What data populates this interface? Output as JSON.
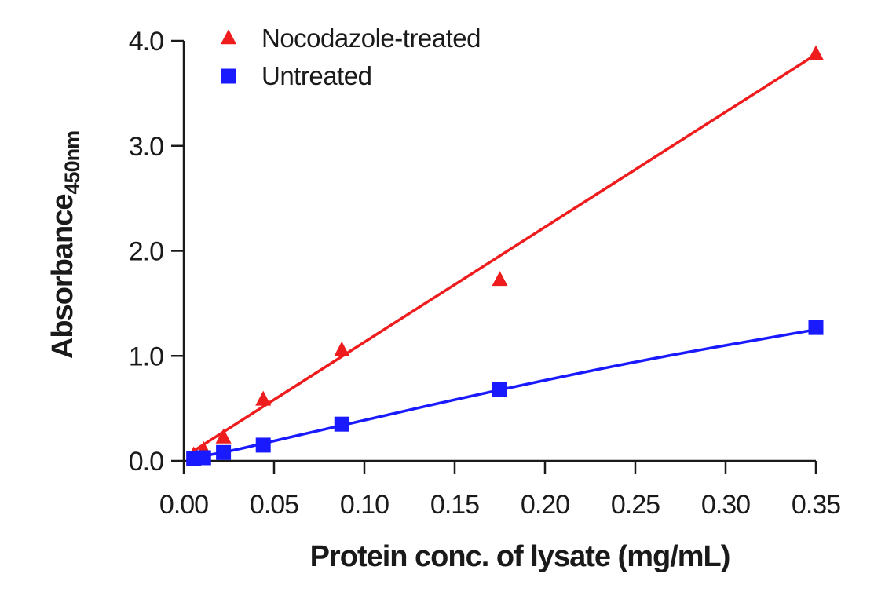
{
  "chart_data": {
    "type": "scatter",
    "title": "",
    "xlabel": "Protein conc. of lysate (mg/mL)",
    "ylabel": "Absorbance",
    "ylabel_subscript": "450nm",
    "xlim": [
      0.0,
      0.35
    ],
    "ylim": [
      0.0,
      4.0
    ],
    "x_ticks": [
      0.0,
      0.05,
      0.1,
      0.15,
      0.2,
      0.25,
      0.3,
      0.35
    ],
    "x_tick_labels": [
      "0.00",
      "0.05",
      "0.10",
      "0.15",
      "0.20",
      "0.25",
      "0.30",
      "0.35"
    ],
    "y_ticks": [
      0.0,
      1.0,
      2.0,
      3.0,
      4.0
    ],
    "y_tick_labels": [
      "0.0",
      "1.0",
      "2.0",
      "3.0",
      "4.0"
    ],
    "grid": false,
    "legend_position": "top-left",
    "series": [
      {
        "name": "Nocodazole-treated",
        "marker": "triangle",
        "color": "#ee1c1c",
        "x": [
          0.0055,
          0.011,
          0.022,
          0.044,
          0.0875,
          0.175,
          0.35
        ],
        "y": [
          0.05,
          0.1,
          0.22,
          0.58,
          1.05,
          1.72,
          3.87
        ],
        "fit": "linear",
        "fit_line": [
          [
            0.005,
            0.09
          ],
          [
            0.35,
            3.87
          ]
        ]
      },
      {
        "name": "Untreated",
        "marker": "square",
        "color": "#1a1aff",
        "x": [
          0.0055,
          0.011,
          0.022,
          0.044,
          0.0875,
          0.175,
          0.35
        ],
        "y": [
          0.02,
          0.03,
          0.08,
          0.15,
          0.35,
          0.68,
          1.27
        ],
        "fit": "curve",
        "fit_line": [
          [
            0.005,
            0.03
          ],
          [
            0.022,
            0.08
          ],
          [
            0.044,
            0.165
          ],
          [
            0.0875,
            0.34
          ],
          [
            0.175,
            0.68
          ],
          [
            0.26,
            0.98
          ],
          [
            0.35,
            1.25
          ]
        ]
      }
    ]
  }
}
